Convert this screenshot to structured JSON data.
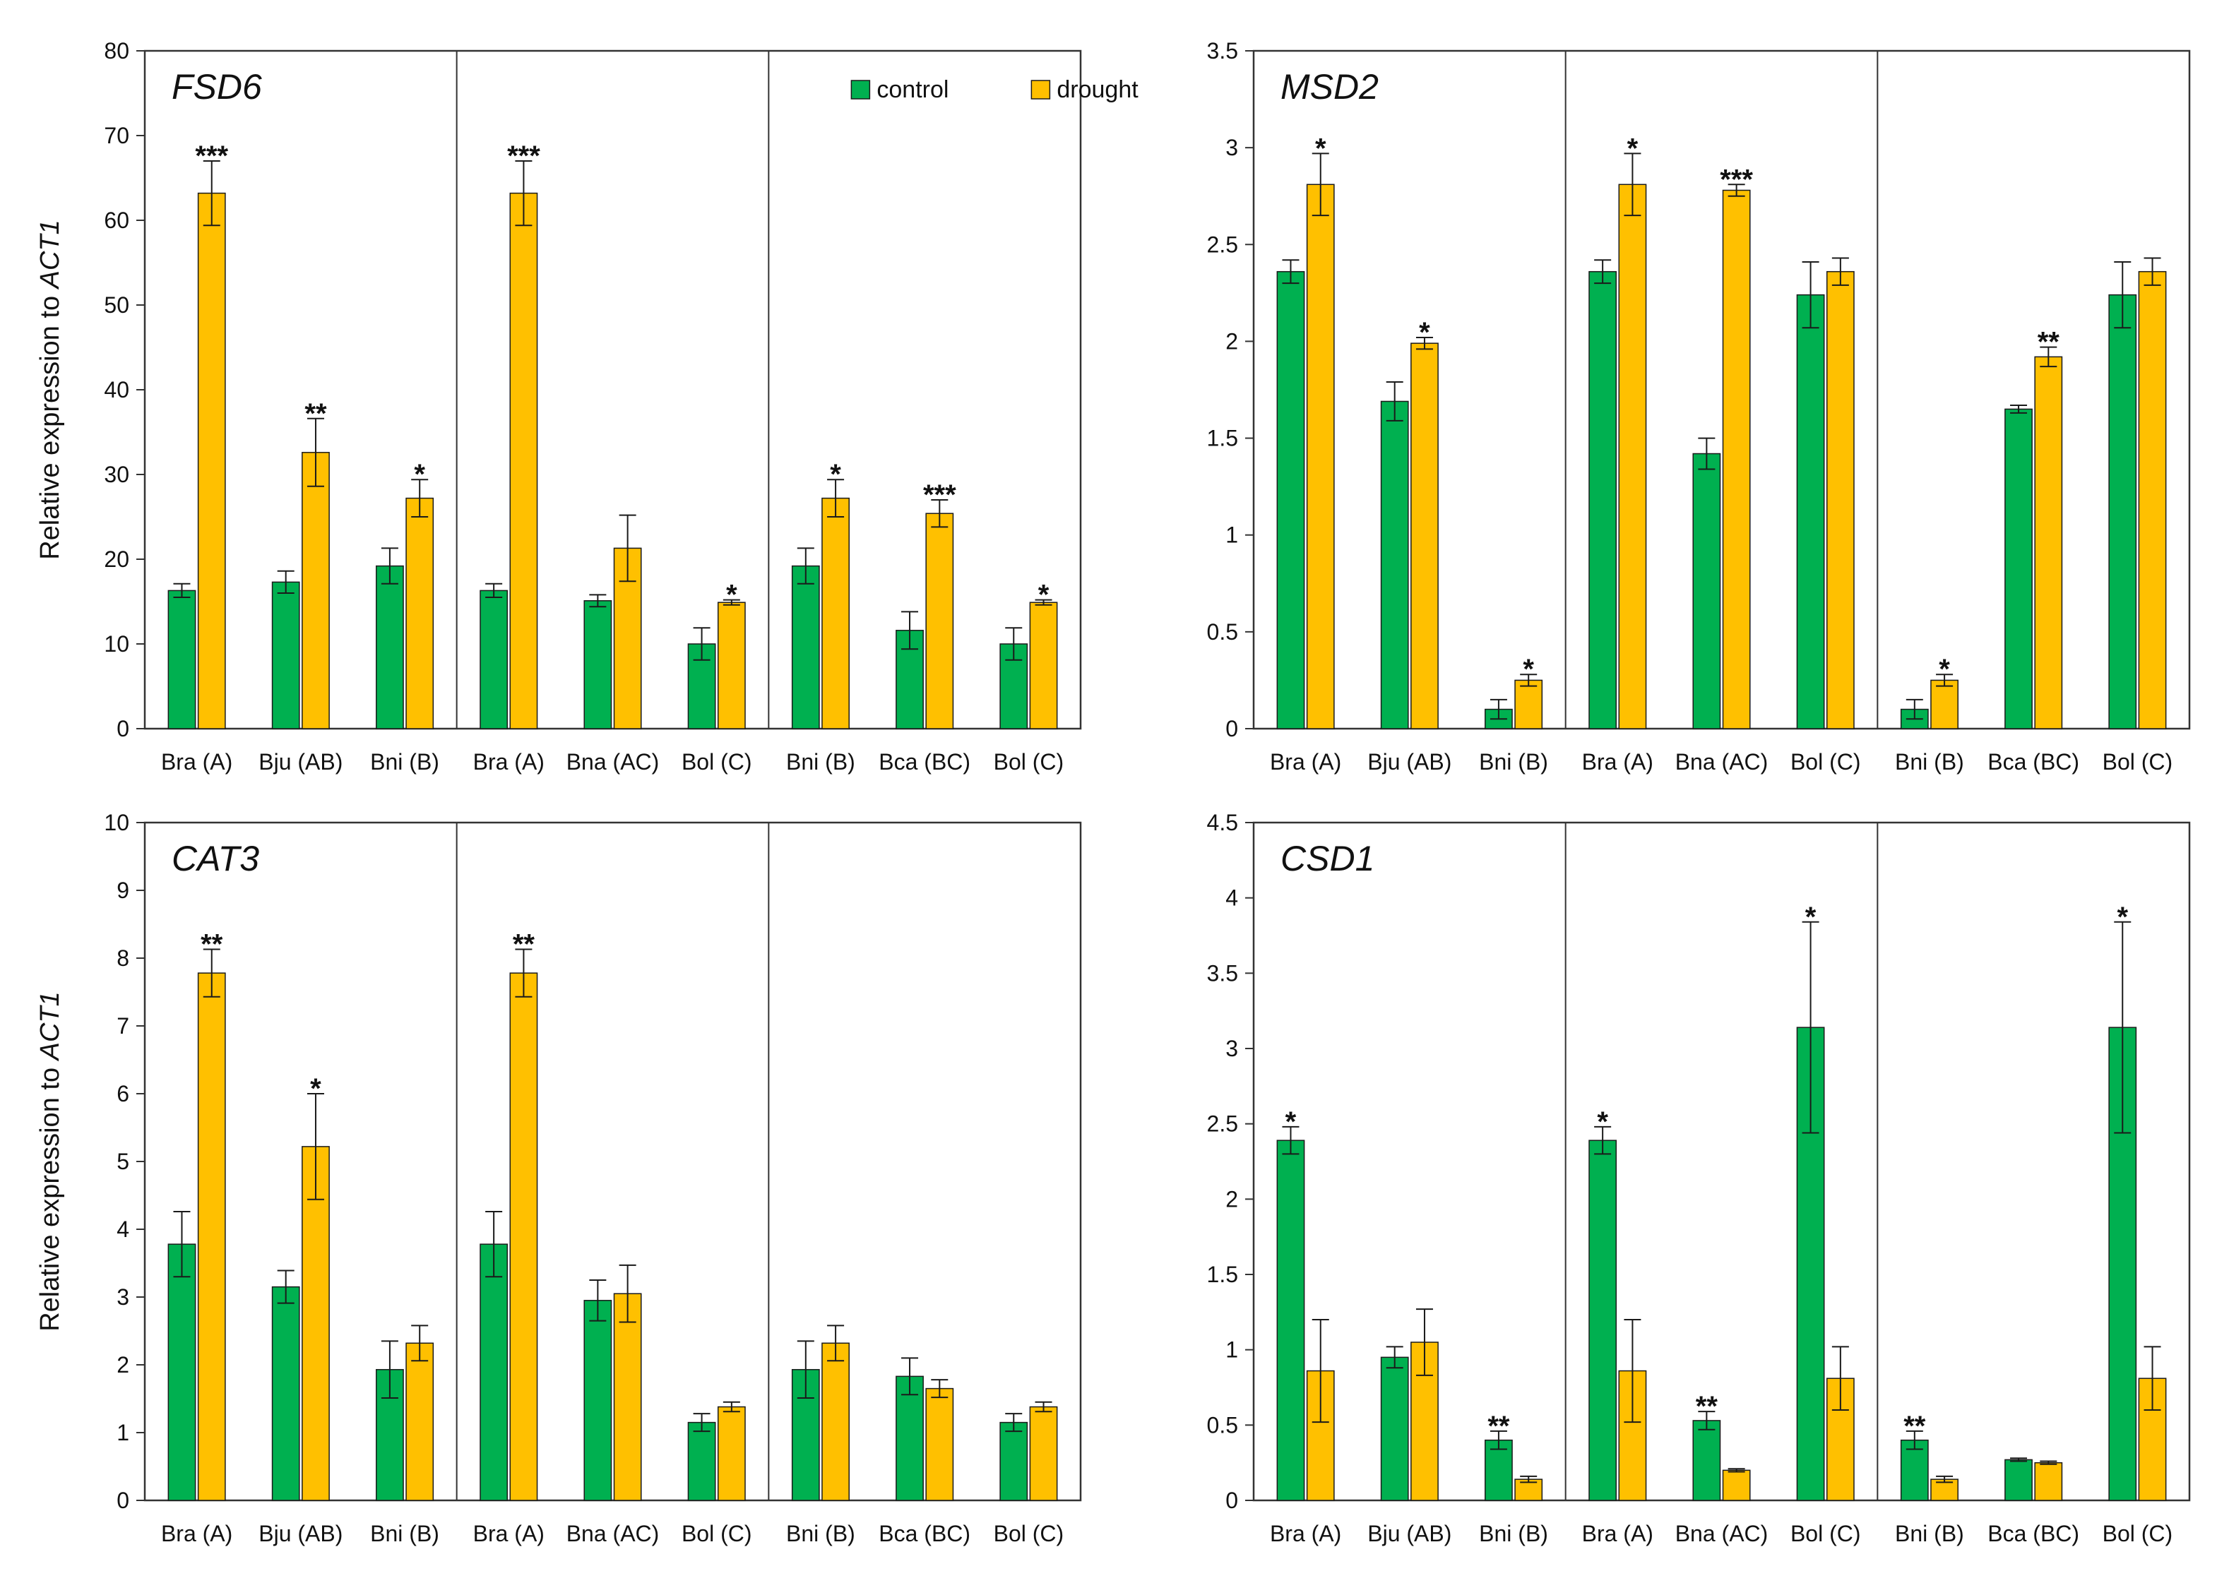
{
  "colors": {
    "control": "#00b050",
    "drought": "#ffc000",
    "axis": "#333333",
    "bar_edge": "#1a1a1a"
  },
  "y_axis_label": {
    "prefix": "Relative expression to ",
    "gene": "ACT1"
  },
  "legend": {
    "position": "top-right",
    "entries": [
      "control",
      "drought"
    ]
  },
  "chart_data": [
    {
      "type": "bar",
      "title": "FSD6",
      "ylim": [
        0,
        80
      ],
      "yticks": [
        "0",
        "10",
        "20",
        "30",
        "40",
        "50",
        "60",
        "70",
        "80"
      ],
      "categories": [
        "Bra (A)",
        "Bju (AB)",
        "Bni (B)",
        "Bra (A)",
        "Bna (AC)",
        "Bol (C)",
        "Bni (B)",
        "Bca (BC)",
        "Bol (C)"
      ],
      "group_breaks_after": [
        2,
        5
      ],
      "series": [
        {
          "name": "control",
          "values": [
            16.3,
            17.3,
            19.2,
            16.3,
            15.1,
            10.0,
            19.2,
            11.6,
            10.0
          ],
          "errors": [
            0.8,
            1.3,
            2.1,
            0.8,
            0.7,
            1.9,
            2.1,
            2.2,
            1.9
          ]
        },
        {
          "name": "drought",
          "values": [
            63.2,
            32.6,
            27.2,
            63.2,
            21.3,
            14.9,
            27.2,
            25.4,
            14.9
          ],
          "errors": [
            3.8,
            4.0,
            2.2,
            3.8,
            3.9,
            0.3,
            2.2,
            1.6,
            0.3
          ]
        }
      ],
      "significance": [
        "***",
        "**",
        "*",
        "***",
        "",
        "*",
        "*",
        "***",
        "*"
      ],
      "show_legend": true
    },
    {
      "type": "bar",
      "title": "MSD2",
      "ylim": [
        0,
        3.5
      ],
      "yticks": [
        "0",
        "0.5",
        "1",
        "1.5",
        "2",
        "2.5",
        "3",
        "3.5"
      ],
      "categories": [
        "Bra (A)",
        "Bju (AB)",
        "Bni (B)",
        "Bra (A)",
        "Bna (AC)",
        "Bol (C)",
        "Bni (B)",
        "Bca (BC)",
        "Bol (C)"
      ],
      "group_breaks_after": [
        2,
        5
      ],
      "series": [
        {
          "name": "control",
          "values": [
            2.36,
            1.69,
            0.1,
            2.36,
            1.42,
            2.24,
            0.1,
            1.65,
            2.24
          ],
          "errors": [
            0.06,
            0.1,
            0.05,
            0.06,
            0.08,
            0.17,
            0.05,
            0.02,
            0.17
          ]
        },
        {
          "name": "drought",
          "values": [
            2.81,
            1.99,
            0.25,
            2.81,
            2.78,
            2.36,
            0.25,
            1.92,
            2.36
          ],
          "errors": [
            0.16,
            0.03,
            0.03,
            0.16,
            0.03,
            0.07,
            0.03,
            0.05,
            0.07
          ]
        }
      ],
      "significance": [
        "*",
        "*",
        "*",
        "*",
        "***",
        "",
        "*",
        "**",
        ""
      ],
      "show_legend": false
    },
    {
      "type": "bar",
      "title": "CAT3",
      "ylim": [
        0,
        10
      ],
      "yticks": [
        "0",
        "1",
        "2",
        "3",
        "4",
        "5",
        "6",
        "7",
        "8",
        "9",
        "10"
      ],
      "categories": [
        "Bra (A)",
        "Bju (AB)",
        "Bni (B)",
        "Bra (A)",
        "Bna (AC)",
        "Bol (C)",
        "Bni (B)",
        "Bca (BC)",
        "Bol (C)"
      ],
      "group_breaks_after": [
        2,
        5
      ],
      "series": [
        {
          "name": "control",
          "values": [
            3.78,
            3.15,
            1.93,
            3.78,
            2.95,
            1.15,
            1.93,
            1.83,
            1.15
          ],
          "errors": [
            0.48,
            0.24,
            0.42,
            0.48,
            0.3,
            0.13,
            0.42,
            0.27,
            0.13
          ]
        },
        {
          "name": "drought",
          "values": [
            7.78,
            5.22,
            2.32,
            7.78,
            3.05,
            1.38,
            2.32,
            1.65,
            1.38
          ],
          "errors": [
            0.35,
            0.78,
            0.26,
            0.35,
            0.42,
            0.07,
            0.26,
            0.13,
            0.07
          ]
        }
      ],
      "significance": [
        "**",
        "*",
        "",
        "**",
        "",
        "",
        "",
        "",
        ""
      ],
      "show_legend": false
    },
    {
      "type": "bar",
      "title": "CSD1",
      "ylim": [
        0,
        4.5
      ],
      "yticks": [
        "0",
        "0.5",
        "1",
        "1.5",
        "2",
        "2.5",
        "3",
        "3.5",
        "4",
        "4.5"
      ],
      "categories": [
        "Bra (A)",
        "Bju (AB)",
        "Bni (B)",
        "Bra (A)",
        "Bna (AC)",
        "Bol (C)",
        "Bni (B)",
        "Bca (BC)",
        "Bol (C)"
      ],
      "group_breaks_after": [
        2,
        5
      ],
      "series": [
        {
          "name": "control",
          "values": [
            2.39,
            0.95,
            0.4,
            2.39,
            0.53,
            3.14,
            0.4,
            0.27,
            3.14
          ],
          "errors": [
            0.09,
            0.07,
            0.06,
            0.09,
            0.06,
            0.7,
            0.06,
            0.01,
            0.7
          ]
        },
        {
          "name": "drought",
          "values": [
            0.86,
            1.05,
            0.14,
            0.86,
            0.2,
            0.81,
            0.14,
            0.25,
            0.81
          ],
          "errors": [
            0.34,
            0.22,
            0.02,
            0.34,
            0.01,
            0.21,
            0.02,
            0.01,
            0.21
          ]
        }
      ],
      "significance": [
        "*",
        "",
        "**",
        "*",
        "**",
        "*",
        "**",
        "",
        "*"
      ],
      "significance_on": "control",
      "show_legend": false
    }
  ]
}
